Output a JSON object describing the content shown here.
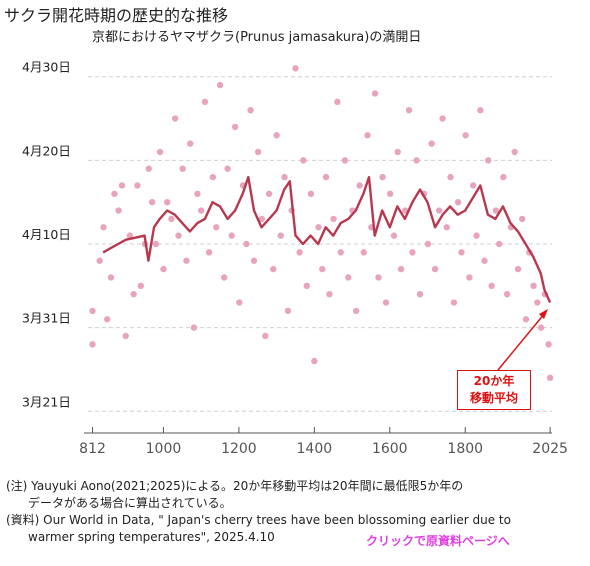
{
  "title": "サクラ開花時期の歴史的な推移",
  "subtitle": "京都におけるヤマザクラ(Prunus jamasakura)の満開日",
  "chart_data": {
    "type": "scatter",
    "y_unit": "day of year",
    "y_ticks": [
      {
        "value": 80,
        "label": "3月21日"
      },
      {
        "value": 90,
        "label": "3月31日"
      },
      {
        "value": 100,
        "label": "4月10日"
      },
      {
        "value": 110,
        "label": "4月20日"
      },
      {
        "value": 120,
        "label": "4月30日"
      }
    ],
    "ylim": [
      78,
      122
    ],
    "x_ticks": [
      812,
      1000,
      1200,
      1400,
      1600,
      1800,
      2025
    ],
    "xlim": [
      800,
      2030
    ],
    "grid": true,
    "colors": {
      "points": "#e8a4bd",
      "line": "#b8384e",
      "callout": "#dd1111"
    },
    "moving_average": {
      "name": "20か年移動平均",
      "label_line1": "20か年",
      "label_line2": "移動平均",
      "points": [
        [
          840,
          99
        ],
        [
          860,
          99.5
        ],
        [
          880,
          100
        ],
        [
          900,
          100.5
        ],
        [
          930,
          100.8
        ],
        [
          950,
          101
        ],
        [
          960,
          98
        ],
        [
          975,
          102
        ],
        [
          990,
          103
        ],
        [
          1010,
          104
        ],
        [
          1030,
          103.5
        ],
        [
          1050,
          102.5
        ],
        [
          1070,
          101.5
        ],
        [
          1090,
          102.5
        ],
        [
          1110,
          103
        ],
        [
          1130,
          105
        ],
        [
          1150,
          104.5
        ],
        [
          1170,
          103
        ],
        [
          1190,
          104
        ],
        [
          1210,
          106
        ],
        [
          1225,
          108
        ],
        [
          1240,
          104
        ],
        [
          1260,
          102
        ],
        [
          1280,
          103
        ],
        [
          1300,
          104
        ],
        [
          1320,
          106.5
        ],
        [
          1335,
          107.5
        ],
        [
          1350,
          101
        ],
        [
          1370,
          100
        ],
        [
          1390,
          101
        ],
        [
          1410,
          100
        ],
        [
          1430,
          102
        ],
        [
          1450,
          101
        ],
        [
          1470,
          102.5
        ],
        [
          1490,
          103
        ],
        [
          1510,
          104
        ],
        [
          1530,
          106
        ],
        [
          1545,
          108
        ],
        [
          1560,
          101
        ],
        [
          1580,
          104
        ],
        [
          1600,
          102
        ],
        [
          1620,
          104.5
        ],
        [
          1640,
          103
        ],
        [
          1660,
          105
        ],
        [
          1680,
          106.5
        ],
        [
          1700,
          105
        ],
        [
          1720,
          102
        ],
        [
          1740,
          103.5
        ],
        [
          1760,
          104.5
        ],
        [
          1780,
          103.5
        ],
        [
          1800,
          104
        ],
        [
          1820,
          105.5
        ],
        [
          1840,
          107
        ],
        [
          1860,
          103.5
        ],
        [
          1880,
          103
        ],
        [
          1900,
          104.5
        ],
        [
          1920,
          102.5
        ],
        [
          1940,
          101.5
        ],
        [
          1960,
          100
        ],
        [
          1980,
          98.5
        ],
        [
          2000,
          96.5
        ],
        [
          2010,
          94.5
        ],
        [
          2025,
          93
        ]
      ]
    },
    "points": [
      [
        812,
        92
      ],
      [
        812,
        88
      ],
      [
        831,
        98
      ],
      [
        841,
        102
      ],
      [
        851,
        91
      ],
      [
        861,
        96
      ],
      [
        870,
        106
      ],
      [
        881,
        104
      ],
      [
        890,
        107
      ],
      [
        900,
        89
      ],
      [
        911,
        101
      ],
      [
        921,
        94
      ],
      [
        931,
        107
      ],
      [
        940,
        95
      ],
      [
        951,
        100
      ],
      [
        961,
        109
      ],
      [
        970,
        105
      ],
      [
        980,
        100
      ],
      [
        991,
        111
      ],
      [
        1000,
        97
      ],
      [
        1010,
        105
      ],
      [
        1021,
        103
      ],
      [
        1031,
        115
      ],
      [
        1040,
        101
      ],
      [
        1051,
        109
      ],
      [
        1061,
        98
      ],
      [
        1071,
        112
      ],
      [
        1081,
        90
      ],
      [
        1090,
        106
      ],
      [
        1100,
        104
      ],
      [
        1110,
        117
      ],
      [
        1121,
        99
      ],
      [
        1131,
        108
      ],
      [
        1140,
        102
      ],
      [
        1150,
        119
      ],
      [
        1161,
        96
      ],
      [
        1170,
        109
      ],
      [
        1181,
        101
      ],
      [
        1190,
        114
      ],
      [
        1201,
        93
      ],
      [
        1211,
        107
      ],
      [
        1220,
        100
      ],
      [
        1231,
        116
      ],
      [
        1240,
        98
      ],
      [
        1251,
        111
      ],
      [
        1261,
        103
      ],
      [
        1270,
        89
      ],
      [
        1280,
        106
      ],
      [
        1291,
        97
      ],
      [
        1300,
        113
      ],
      [
        1311,
        101
      ],
      [
        1321,
        108
      ],
      [
        1330,
        92
      ],
      [
        1340,
        104
      ],
      [
        1350,
        121
      ],
      [
        1361,
        99
      ],
      [
        1371,
        110
      ],
      [
        1380,
        95
      ],
      [
        1391,
        106
      ],
      [
        1400,
        86
      ],
      [
        1411,
        102
      ],
      [
        1421,
        97
      ],
      [
        1431,
        108
      ],
      [
        1440,
        94
      ],
      [
        1451,
        103
      ],
      [
        1461,
        117
      ],
      [
        1470,
        99
      ],
      [
        1481,
        110
      ],
      [
        1490,
        96
      ],
      [
        1501,
        104
      ],
      [
        1511,
        92
      ],
      [
        1520,
        107
      ],
      [
        1531,
        99
      ],
      [
        1541,
        113
      ],
      [
        1551,
        102
      ],
      [
        1561,
        118
      ],
      [
        1570,
        96
      ],
      [
        1581,
        108
      ],
      [
        1590,
        93
      ],
      [
        1601,
        106
      ],
      [
        1611,
        101
      ],
      [
        1621,
        111
      ],
      [
        1630,
        97
      ],
      [
        1641,
        104
      ],
      [
        1651,
        116
      ],
      [
        1660,
        99
      ],
      [
        1671,
        110
      ],
      [
        1680,
        94
      ],
      [
        1691,
        106
      ],
      [
        1701,
        100
      ],
      [
        1711,
        112
      ],
      [
        1720,
        97
      ],
      [
        1731,
        104
      ],
      [
        1740,
        115
      ],
      [
        1751,
        102
      ],
      [
        1761,
        108
      ],
      [
        1770,
        93
      ],
      [
        1781,
        105
      ],
      [
        1790,
        99
      ],
      [
        1801,
        113
      ],
      [
        1811,
        96
      ],
      [
        1821,
        107
      ],
      [
        1830,
        101
      ],
      [
        1840,
        116
      ],
      [
        1851,
        98
      ],
      [
        1861,
        110
      ],
      [
        1870,
        95
      ],
      [
        1881,
        104
      ],
      [
        1890,
        100
      ],
      [
        1901,
        108
      ],
      [
        1911,
        94
      ],
      [
        1921,
        102
      ],
      [
        1931,
        111
      ],
      [
        1940,
        97
      ],
      [
        1951,
        103
      ],
      [
        1961,
        91
      ],
      [
        1970,
        99
      ],
      [
        1981,
        95
      ],
      [
        1991,
        93
      ],
      [
        2001,
        90
      ],
      [
        2011,
        94
      ],
      [
        2021,
        88
      ],
      [
        2025,
        84
      ]
    ]
  },
  "notes": {
    "line1": "(注) Yauyuki Aono(2021;2025)による。20か年移動平均は20年間に最低限5か年の",
    "line2": "データがある場合に算出されている。",
    "line3": "(資料) Our World in Data, \" Japan's cherry trees have been blossoming earlier due to",
    "line4": "warmer spring temperatures\", 2025.4.10"
  },
  "link_text": "クリックで原資料ページへ"
}
